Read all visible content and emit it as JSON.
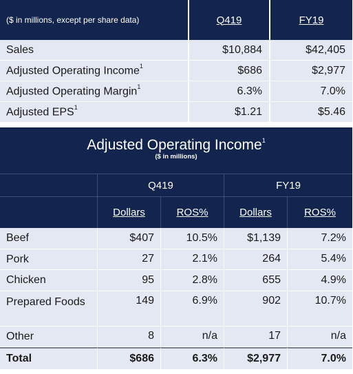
{
  "summary": {
    "header_label": "($ in millions, except per share data)",
    "periods": [
      "Q419",
      "FY19"
    ],
    "rows": [
      {
        "label": "Sales",
        "sup": "",
        "q419": "$10,884",
        "fy19": "$42,405"
      },
      {
        "label": "Adjusted Operating Income",
        "sup": "1",
        "q419": "$686",
        "fy19": "$2,977"
      },
      {
        "label": "Adjusted Operating Margin",
        "sup": "1",
        "q419": "6.3%",
        "fy19": "7.0%"
      },
      {
        "label": "Adjusted EPS",
        "sup": "1",
        "q419": "$1.21",
        "fy19": "$5.46"
      }
    ]
  },
  "operating_income": {
    "title": "Adjusted Operating Income",
    "title_sup": "1",
    "subtitle": "($ in millions)",
    "groups": [
      "Q419",
      "FY19"
    ],
    "columns": [
      "Dollars",
      "ROS%",
      "Dollars",
      "ROS%"
    ],
    "rows": [
      {
        "label": "Beef",
        "values": [
          "$407",
          "10.5%",
          "$1,139",
          "7.2%"
        ]
      },
      {
        "label": "Pork",
        "values": [
          "27",
          "2.1%",
          "264",
          "5.4%"
        ]
      },
      {
        "label": "Chicken",
        "values": [
          "95",
          "2.8%",
          "655",
          "4.9%"
        ]
      },
      {
        "label": "Prepared Foods",
        "values": [
          "149",
          "6.9%",
          "902",
          "10.7%"
        ]
      },
      {
        "label": "Other",
        "values": [
          "8",
          "n/a",
          "17",
          "n/a"
        ]
      }
    ],
    "total": {
      "label": "Total",
      "values": [
        "$686",
        "6.3%",
        "$2,977",
        "7.0%"
      ]
    }
  }
}
